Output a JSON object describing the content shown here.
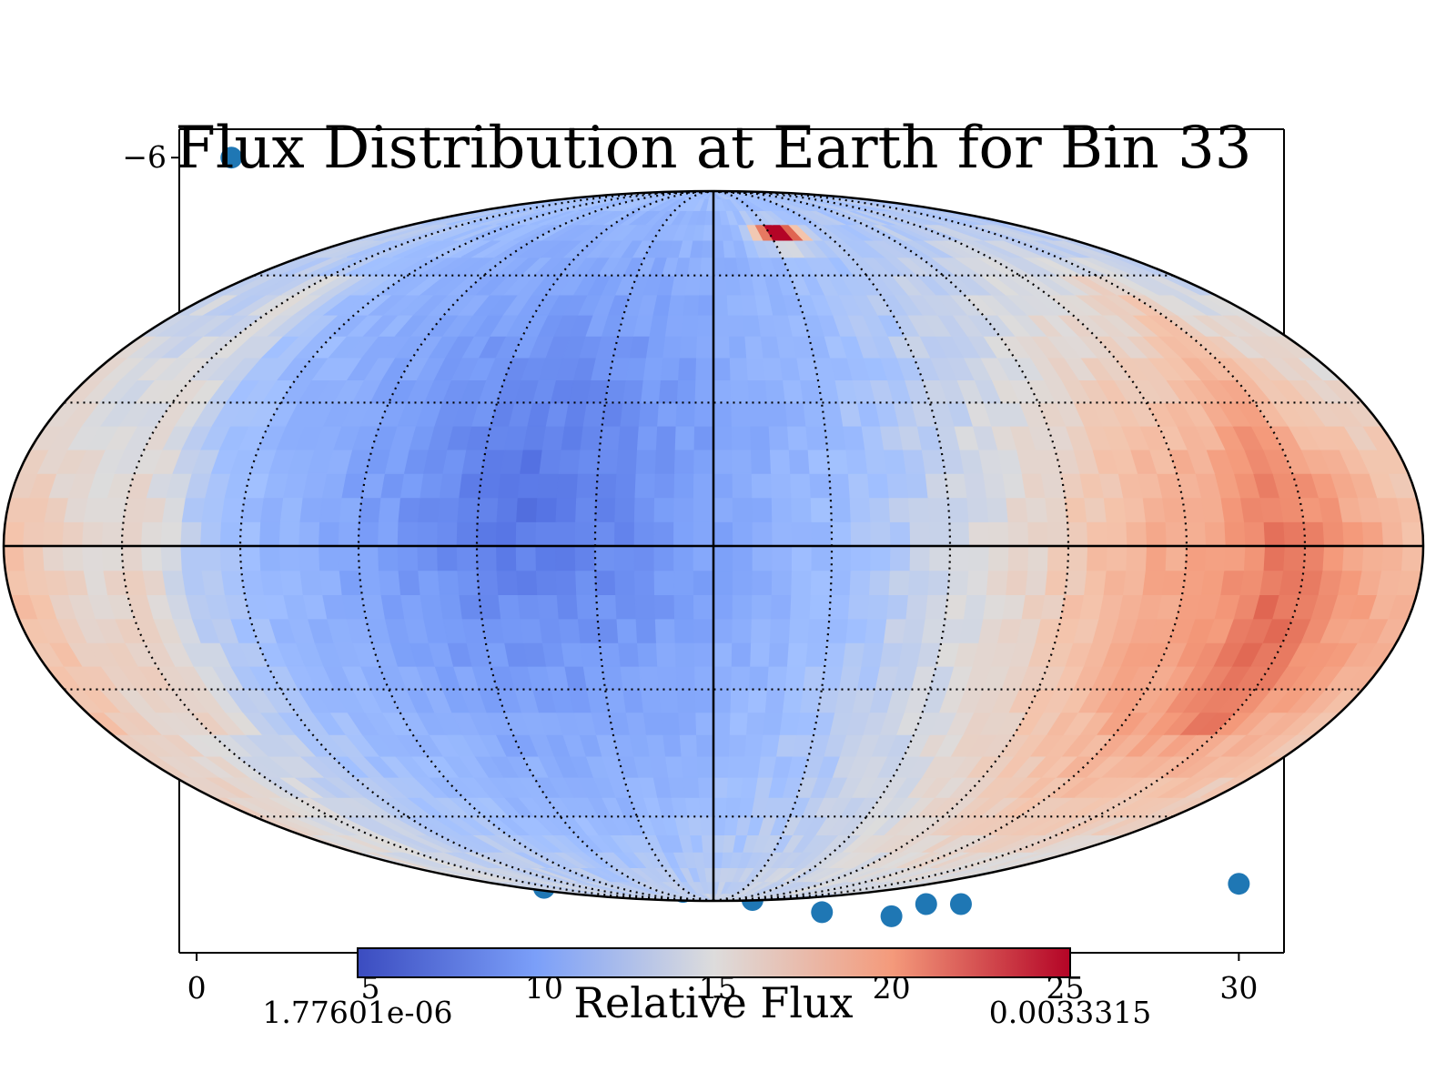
{
  "chart_data": [
    {
      "type": "heatmap",
      "projection": "mollweide",
      "title": "Flux Distribution at Earth for Bin 33",
      "colormap": "coolwarm",
      "colorbar": {
        "label": "Relative Flux",
        "min_label": "1.77601e-06",
        "max_label": "0.0033315"
      },
      "graticule": {
        "meridians_deg": [
          -150,
          -120,
          -90,
          -60,
          -30,
          0,
          30,
          60,
          90,
          120,
          150
        ],
        "parallels_deg": [
          -60,
          -30,
          0,
          30,
          60
        ],
        "style": "dotted",
        "equator_and_central_meridian": "solid"
      },
      "features": [
        {
          "description": "cold minimum",
          "lon": -45,
          "lat": 10,
          "value": 0.0
        },
        {
          "description": "warm band",
          "lon": 145,
          "lat": -15,
          "value": 0.65
        },
        {
          "description": "hot spot",
          "lon": 35,
          "lat": 72,
          "value": 1.0
        }
      ]
    },
    {
      "type": "scatter",
      "series": [
        {
          "color": "#1f77b4",
          "x": [
            1,
            10,
            14,
            16,
            18,
            20,
            21,
            22,
            30
          ],
          "y": [
            -6,
            -24,
            -24.1,
            -24.3,
            -24.6,
            -24.7,
            -24.4,
            -24.4,
            -23.9
          ]
        }
      ],
      "x_ticks": [
        "0",
        "5",
        "10",
        "15",
        "20",
        "25",
        "30"
      ],
      "y_ticks": [
        "−6"
      ],
      "xlim": [
        -0.5,
        31.3
      ],
      "ylim": [
        -25.6,
        -5.3
      ]
    }
  ]
}
